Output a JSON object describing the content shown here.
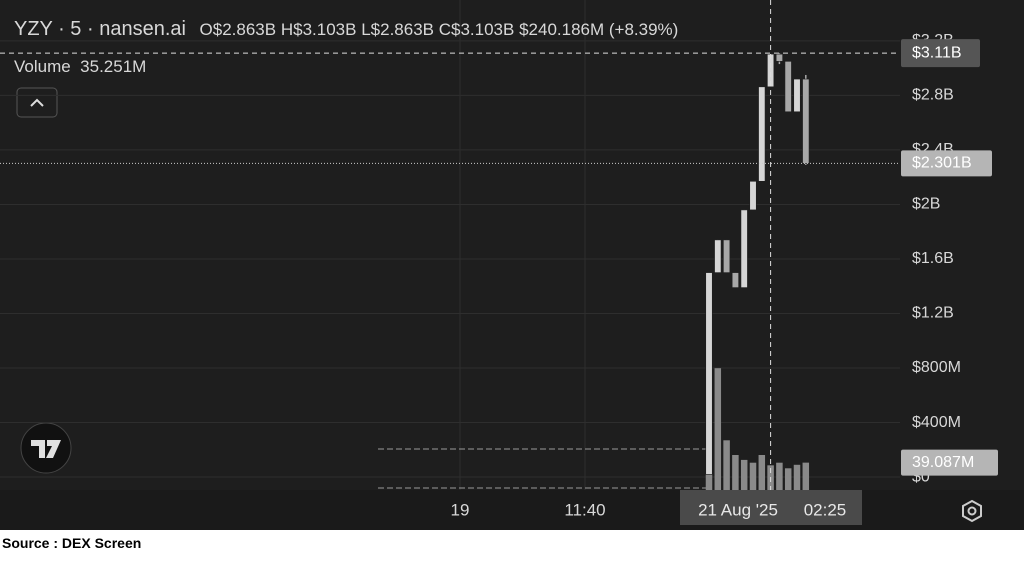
{
  "chart_data": {
    "type": "candlestick",
    "title": "YZY · 5 · nansen.ai",
    "ohlc_legend": [
      {
        "key": "O",
        "value": "$2.863B"
      },
      {
        "key": "H",
        "value": "$3.103B"
      },
      {
        "key": "L",
        "value": "$2.863B"
      },
      {
        "key": "C",
        "value": "$3.103B"
      }
    ],
    "change": "$240.186M (+8.39%)",
    "volume_legend": {
      "name": "Volume",
      "value": "35.251M"
    },
    "categories": [
      null,
      null,
      null,
      null,
      null,
      null,
      null,
      null,
      null,
      null,
      null,
      null
    ],
    "open": [
      0.02,
      1.5,
      1.74,
      1.5,
      1.39,
      1.96,
      2.17,
      2.863,
      3.103,
      3.05,
      2.68,
      2.92
    ],
    "high": [
      1.5,
      1.74,
      1.74,
      1.5,
      1.96,
      2.17,
      2.863,
      3.103,
      3.11,
      3.05,
      2.92,
      2.95
    ],
    "low": [
      0.02,
      1.5,
      1.5,
      1.39,
      1.39,
      1.96,
      2.17,
      2.863,
      3.03,
      2.68,
      2.68,
      2.29
    ],
    "close": [
      1.5,
      1.74,
      1.5,
      1.39,
      1.96,
      2.17,
      2.863,
      3.103,
      3.05,
      2.68,
      2.92,
      2.301
    ],
    "volume": [
      64,
      174,
      71,
      50,
      43,
      39,
      50,
      35.251,
      39,
      31,
      36,
      39.087
    ],
    "up_color": "#d6d6d6",
    "down_color": "#a8a8a8",
    "volume_color": "#8a8a8a",
    "ylim": [
      -0.095,
      3.5
    ],
    "yticks": [
      {
        "value": 0,
        "label": "$0"
      },
      {
        "value": 0.4,
        "label": "$400M"
      },
      {
        "value": 0.8,
        "label": "$800M"
      },
      {
        "value": 1.2,
        "label": "$1.2B"
      },
      {
        "value": 1.6,
        "label": "$1.6B"
      },
      {
        "value": 2,
        "label": "$2B"
      },
      {
        "value": 2.4,
        "label": "$2.4B"
      },
      {
        "value": 2.8,
        "label": "$2.8B"
      },
      {
        "value": 3.2,
        "label": "$3.2B"
      }
    ],
    "y2lim": [
      0,
      700
    ],
    "grid": true,
    "last_price": {
      "value": 2.301,
      "label": "$2.301B"
    },
    "crosshair_price": {
      "value": 3.11,
      "label": "$3.11B"
    },
    "last_volume": {
      "value": 39.087,
      "label": "39.087M"
    },
    "x_labels": [
      "19",
      "11:40"
    ],
    "crosshair_time": {
      "date": "21 Aug '25",
      "time": "02:25"
    }
  },
  "source": "Source : DEX Screen"
}
